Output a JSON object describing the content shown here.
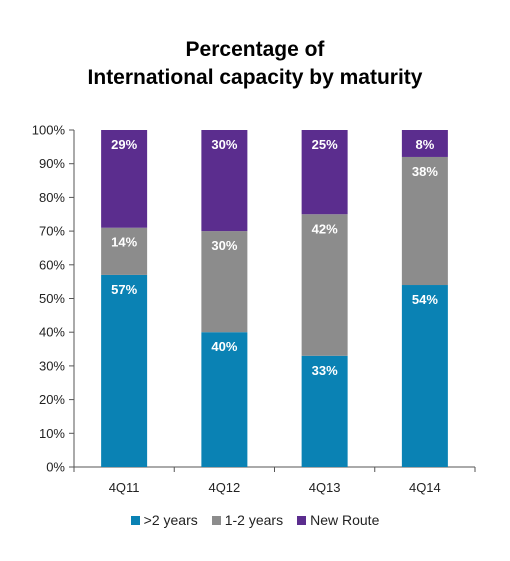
{
  "chart_data": {
    "type": "bar",
    "stacked": true,
    "title_line1": "Percentage of",
    "title_line2": "International capacity by maturity",
    "categories": [
      "4Q11",
      "4Q12",
      "4Q13",
      "4Q14"
    ],
    "series": [
      {
        "name": ">2 years",
        "values": [
          57,
          40,
          33,
          54
        ],
        "labels": [
          "57%",
          "40%",
          "33%",
          "54%"
        ],
        "color": "#0a82b4"
      },
      {
        "name": "1-2 years",
        "values": [
          14,
          30,
          42,
          38
        ],
        "labels": [
          "14%",
          "30%",
          "42%",
          "38%"
        ],
        "color": "#8c8c8c"
      },
      {
        "name": "New Route",
        "values": [
          29,
          30,
          25,
          8
        ],
        "labels": [
          "29%",
          "30%",
          "25%",
          "8%"
        ],
        "color": "#5b2d8e"
      }
    ],
    "yticks": [
      "0%",
      "10%",
      "20%",
      "30%",
      "40%",
      "50%",
      "60%",
      "70%",
      "80%",
      "90%",
      "100%"
    ],
    "ylim": [
      0,
      100
    ],
    "grid": false,
    "legend_position": "bottom"
  }
}
